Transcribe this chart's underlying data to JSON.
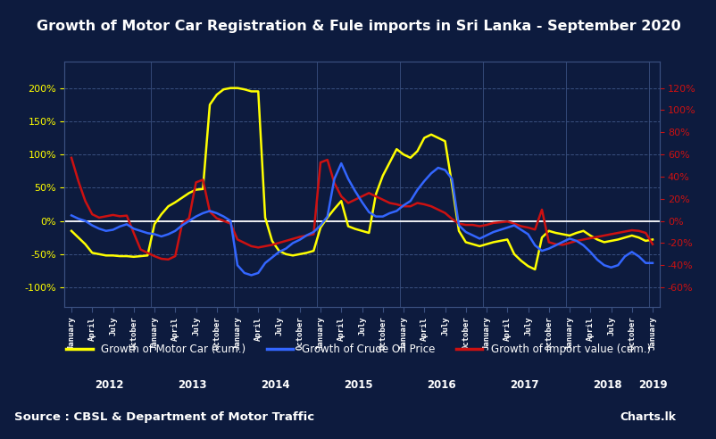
{
  "title": "Growth of Motor Car Registration & Fule imports in Sri Lanka - September 2020",
  "bg_color": "#0d1b3e",
  "plot_bg_color": "#0d1b3e",
  "title_color": "white",
  "grid_color": "#3a5080",
  "zero_line_color": "white",
  "source_text": "Source : CBSL & Department of Motor Traffic",
  "left_yticks": [
    -100,
    -50,
    0,
    50,
    100,
    150,
    200
  ],
  "right_yticks": [
    -60,
    -40,
    -20,
    0,
    20,
    40,
    60,
    80,
    100,
    120
  ],
  "left_ylim": [
    -130,
    240
  ],
  "right_ylim": [
    -78,
    144
  ],
  "yellow_data": [
    -15,
    -25,
    -35,
    -48,
    -50,
    -52,
    -52,
    -53,
    -53,
    -54,
    -53,
    -52,
    -5,
    10,
    22,
    28,
    35,
    42,
    47,
    48,
    175,
    190,
    198,
    200,
    200,
    198,
    195,
    195,
    5,
    -30,
    -45,
    -50,
    -52,
    -50,
    -48,
    -45,
    -10,
    5,
    18,
    30,
    -8,
    -12,
    -15,
    -18,
    40,
    68,
    88,
    108,
    100,
    95,
    105,
    125,
    130,
    125,
    120,
    55,
    -15,
    -32,
    -35,
    -38,
    -35,
    -32,
    -30,
    -28,
    -50,
    -60,
    -68,
    -73,
    -25,
    -15,
    -18,
    -20,
    -22,
    -18,
    -15,
    -22,
    -28,
    -32,
    -30,
    -28,
    -25,
    -22,
    -25,
    -30,
    -28
  ],
  "blue_data": [
    5,
    2,
    0,
    -4,
    -7,
    -9,
    -8,
    -5,
    -3,
    -7,
    -9,
    -11,
    -12,
    -14,
    -12,
    -9,
    -4,
    0,
    4,
    7,
    9,
    7,
    4,
    0,
    -40,
    -47,
    -49,
    -47,
    -38,
    -33,
    -28,
    -25,
    -20,
    -17,
    -13,
    -10,
    -4,
    4,
    38,
    52,
    38,
    27,
    17,
    8,
    4,
    4,
    7,
    9,
    14,
    18,
    28,
    36,
    43,
    48,
    46,
    38,
    -4,
    -10,
    -13,
    -16,
    -13,
    -10,
    -8,
    -6,
    -4,
    -8,
    -12,
    -22,
    -27,
    -25,
    -22,
    -19,
    -16,
    -18,
    -22,
    -28,
    -35,
    -40,
    -42,
    -40,
    -32,
    -28,
    -32,
    -38,
    -38
  ],
  "red_data": [
    95,
    60,
    30,
    10,
    5,
    7,
    9,
    7,
    8,
    -18,
    -43,
    -48,
    -53,
    -57,
    -58,
    -53,
    -4,
    4,
    58,
    62,
    14,
    4,
    0,
    -4,
    -28,
    -33,
    -38,
    -40,
    -38,
    -36,
    -33,
    -30,
    -27,
    -24,
    -22,
    -20,
    88,
    92,
    57,
    37,
    27,
    32,
    37,
    42,
    37,
    32,
    27,
    25,
    22,
    22,
    27,
    25,
    22,
    17,
    12,
    3,
    -4,
    -6,
    -6,
    -8,
    -6,
    -3,
    -2,
    -1,
    -4,
    -8,
    -10,
    -13,
    17,
    -32,
    -35,
    -36,
    -33,
    -30,
    -28,
    -26,
    -24,
    -22,
    -20,
    -18,
    -16,
    -14,
    -15,
    -18,
    -35
  ]
}
